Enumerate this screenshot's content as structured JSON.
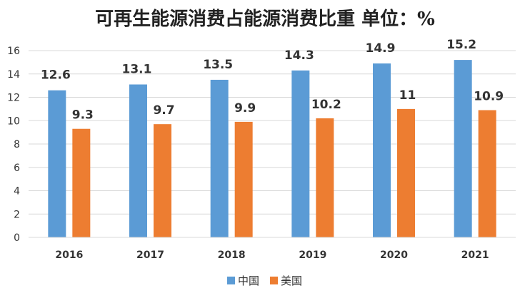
{
  "chart_data": {
    "type": "bar",
    "title": "可再生能源消费占能源消费比重 单位：%",
    "xlabel": "",
    "ylabel": "",
    "categories": [
      "2016",
      "2017",
      "2018",
      "2019",
      "2020",
      "2021"
    ],
    "series": [
      {
        "name": "中国",
        "values": [
          12.6,
          13.1,
          13.5,
          14.3,
          14.9,
          15.2
        ],
        "labels": [
          "12.6",
          "13.1",
          "13.5",
          "14.3",
          "14.9",
          "15.2"
        ],
        "color": "#5b9bd5"
      },
      {
        "name": "美国",
        "values": [
          9.3,
          9.7,
          9.9,
          10.2,
          11,
          10.9
        ],
        "labels": [
          "9.3",
          "9.7",
          "9.9",
          "10.2",
          "11",
          "10.9"
        ],
        "color": "#ed7d31"
      }
    ],
    "ylim": [
      0,
      16
    ],
    "yticks": [
      "0",
      "2",
      "4",
      "6",
      "8",
      "10",
      "12",
      "14",
      "16"
    ],
    "grid": true,
    "gridColor": "#d9d9d9",
    "legend": "bottom"
  }
}
